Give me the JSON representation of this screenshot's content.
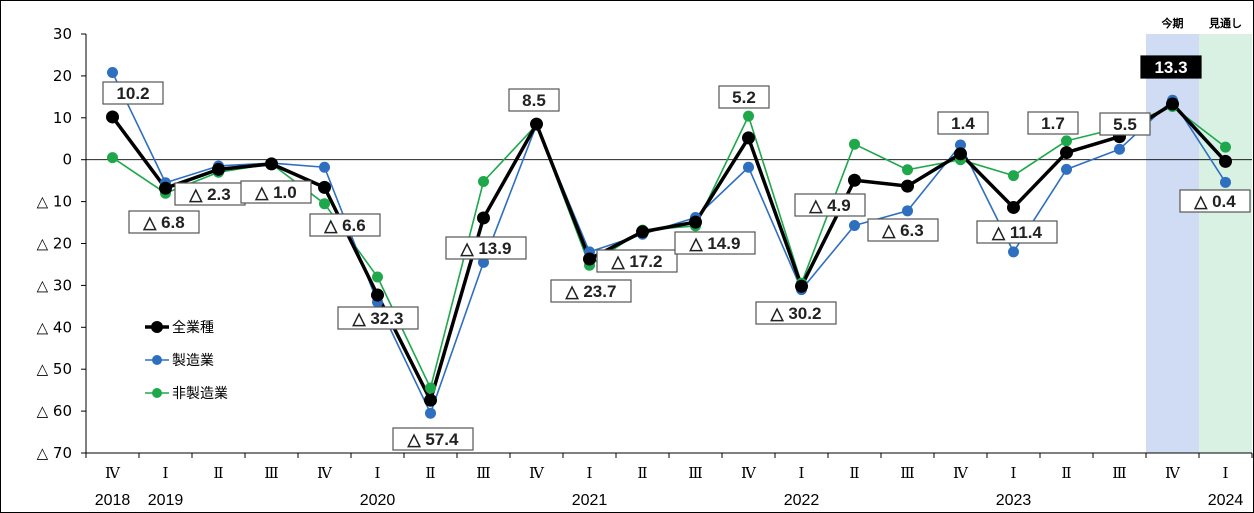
{
  "chart_data": {
    "type": "line",
    "quarters": [
      "Ⅳ",
      "Ⅰ",
      "Ⅱ",
      "Ⅲ",
      "Ⅳ",
      "Ⅰ",
      "Ⅱ",
      "Ⅲ",
      "Ⅳ",
      "Ⅰ",
      "Ⅱ",
      "Ⅲ",
      "Ⅳ",
      "Ⅰ",
      "Ⅱ",
      "Ⅲ",
      "Ⅳ",
      "Ⅰ",
      "Ⅱ",
      "Ⅲ",
      "Ⅳ",
      "Ⅰ"
    ],
    "years": [
      {
        "label": "2018",
        "index": 0
      },
      {
        "label": "2019",
        "index": 1
      },
      {
        "label": "2020",
        "index": 5
      },
      {
        "label": "2021",
        "index": 9
      },
      {
        "label": "2022",
        "index": 13
      },
      {
        "label": "2023",
        "index": 17
      },
      {
        "label": "2024",
        "index": 21
      }
    ],
    "y_ticks": [
      {
        "value": 30,
        "label": "30"
      },
      {
        "value": 20,
        "label": "20"
      },
      {
        "value": 10,
        "label": "10"
      },
      {
        "value": 0,
        "label": "0"
      },
      {
        "value": -10,
        "label": "△ 10"
      },
      {
        "value": -20,
        "label": "△ 20"
      },
      {
        "value": -30,
        "label": "△ 30"
      },
      {
        "value": -40,
        "label": "△ 40"
      },
      {
        "value": -50,
        "label": "△ 50"
      },
      {
        "value": -60,
        "label": "△ 60"
      },
      {
        "value": -70,
        "label": "△ 70"
      }
    ],
    "ylim": [
      -70,
      30
    ],
    "series": [
      {
        "name": "全業種",
        "color": "#000000",
        "values": [
          10.2,
          -6.8,
          -2.3,
          -1.0,
          -6.6,
          -32.3,
          -57.4,
          -13.9,
          8.5,
          -23.7,
          -17.2,
          -14.9,
          5.2,
          -30.2,
          -4.9,
          -6.3,
          1.4,
          -11.4,
          1.7,
          5.5,
          13.3,
          -0.4
        ]
      },
      {
        "name": "製造業",
        "color": "#2e6fc0",
        "values": [
          20.8,
          -5.5,
          -1.5,
          -0.8,
          -1.8,
          -34.0,
          -60.5,
          -24.5,
          8.3,
          -22.0,
          -17.8,
          -13.8,
          -1.8,
          -31.0,
          -15.7,
          -12.2,
          3.5,
          -22.0,
          -2.3,
          2.5,
          14.2,
          -5.4
        ]
      },
      {
        "name": "非製造業",
        "color": "#1ea84b",
        "values": [
          0.5,
          -8.0,
          -3.0,
          -1.0,
          -10.5,
          -28.0,
          -54.5,
          -5.2,
          8.3,
          -25.2,
          -16.8,
          -15.8,
          10.4,
          -29.5,
          3.7,
          -2.4,
          0.0,
          -3.8,
          4.5,
          7.6,
          12.7,
          3.0
        ]
      }
    ],
    "data_labels": [
      {
        "index": 0,
        "text": "10.2"
      },
      {
        "index": 1,
        "text": "△ 6.8"
      },
      {
        "index": 2,
        "text": "△ 2.3"
      },
      {
        "index": 3,
        "text": "△ 1.0"
      },
      {
        "index": 4,
        "text": "△ 6.6"
      },
      {
        "index": 5,
        "text": "△ 32.3"
      },
      {
        "index": 6,
        "text": "△ 57.4"
      },
      {
        "index": 7,
        "text": "△ 13.9"
      },
      {
        "index": 8,
        "text": "8.5"
      },
      {
        "index": 9,
        "text": "△ 23.7"
      },
      {
        "index": 10,
        "text": "△ 17.2"
      },
      {
        "index": 11,
        "text": "△ 14.9"
      },
      {
        "index": 12,
        "text": "5.2"
      },
      {
        "index": 13,
        "text": "△ 30.2"
      },
      {
        "index": 14,
        "text": "△ 4.9"
      },
      {
        "index": 15,
        "text": "△ 6.3"
      },
      {
        "index": 16,
        "text": "1.4"
      },
      {
        "index": 17,
        "text": "△ 11.4"
      },
      {
        "index": 18,
        "text": "1.7"
      },
      {
        "index": 19,
        "text": "5.5"
      },
      {
        "index": 20,
        "text": "13.3",
        "highlight": true
      },
      {
        "index": 21,
        "text": "△ 0.4"
      }
    ],
    "bands": [
      {
        "index": 20,
        "label": "今期",
        "color": "#cfdcf3"
      },
      {
        "index": 21,
        "label": "見通し",
        "color": "#d8f1e3"
      }
    ],
    "legend": {
      "position": "center-left",
      "entries": [
        "全業種",
        "製造業",
        "非製造業"
      ]
    }
  }
}
